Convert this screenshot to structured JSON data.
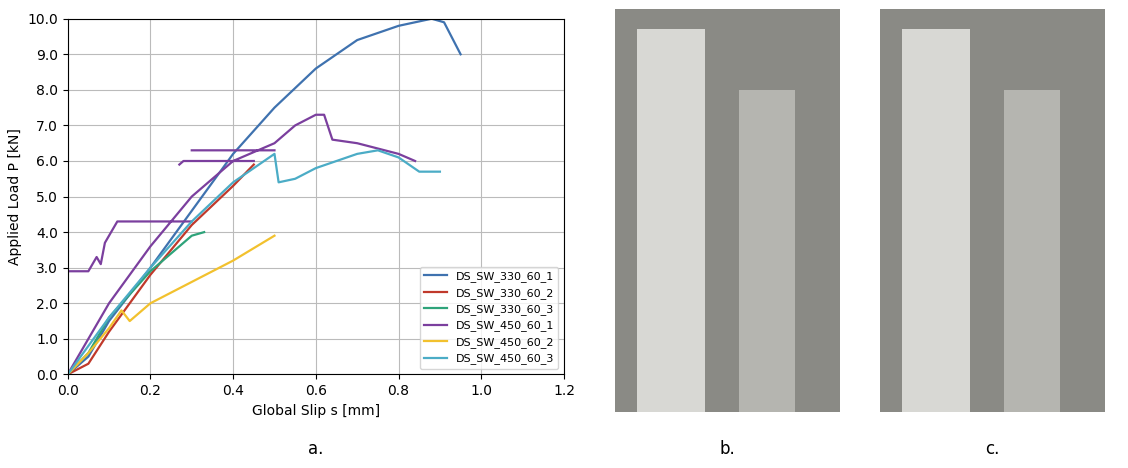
{
  "panel_labels": [
    "a.",
    "b.",
    "c."
  ],
  "chart_data": {
    "type": "line",
    "xlabel": "Global Slip s [mm]",
    "ylabel": "Applied Load P [kN]",
    "xlim": [
      0,
      1.2
    ],
    "ylim": [
      0,
      10
    ],
    "xticks": [
      {
        "value": 0,
        "label": "0.0"
      },
      0.2,
      0.4,
      0.6,
      0.8,
      {
        "value": 1,
        "label": "1.0"
      },
      1.2
    ],
    "yticks": [
      {
        "value": 0,
        "label": "0.0"
      },
      {
        "value": 1,
        "label": "1.0"
      },
      {
        "value": 2,
        "label": "2.0"
      },
      {
        "value": 3,
        "label": "3.0"
      },
      {
        "value": 4,
        "label": "4.0"
      },
      {
        "value": 5,
        "label": "5.0"
      },
      {
        "value": 6,
        "label": "6.0"
      },
      {
        "value": 7,
        "label": "7.0"
      },
      {
        "value": 8,
        "label": "8.0"
      },
      {
        "value": 9,
        "label": "9.0"
      },
      {
        "value": 10,
        "label": "10.0"
      }
    ],
    "grid": true,
    "legend": "lower right",
    "series": [
      {
        "name": "DS_SW_330_60_1",
        "color": "#3f72af",
        "x": [
          0,
          0.05,
          0.1,
          0.2,
          0.3,
          0.4,
          0.5,
          0.6,
          0.7,
          0.8,
          0.88,
          0.91,
          0.95
        ],
        "values": [
          0,
          0.5,
          1.5,
          3.0,
          4.6,
          6.2,
          7.5,
          8.6,
          9.4,
          9.8,
          10.0,
          9.9,
          9.0
        ]
      },
      {
        "name": "DS_SW_330_60_2",
        "color": "#c0392b",
        "x": [
          0,
          0.05,
          0.1,
          0.2,
          0.3,
          0.4,
          0.45
        ],
        "values": [
          0,
          0.3,
          1.2,
          2.8,
          4.2,
          5.3,
          5.9
        ]
      },
      {
        "name": "DS_SW_330_60_3",
        "color": "#2ea37a",
        "x": [
          0,
          0.05,
          0.1,
          0.2,
          0.25,
          0.3,
          0.33
        ],
        "values": [
          0,
          0.6,
          1.6,
          2.9,
          3.4,
          3.9,
          4.0
        ]
      },
      {
        "name": "DS_SW_450_60_1",
        "color": "#7b3f9e",
        "x": [
          0,
          0.1,
          0.2,
          0.3,
          0.4,
          0.5,
          0.55,
          0.6,
          0.62,
          0.64,
          0.7,
          0.8,
          0.84,
          null,
          0,
          0.05,
          0.07,
          0.08,
          0.09,
          0.1,
          0.12,
          0.3,
          null,
          0.27,
          0.28,
          0.45,
          null,
          0.3,
          0.5
        ],
        "values": [
          0,
          2.0,
          3.6,
          5.0,
          6.0,
          6.5,
          7.0,
          7.3,
          7.3,
          6.6,
          6.5,
          6.2,
          6.0,
          null,
          2.9,
          2.9,
          3.3,
          3.1,
          3.7,
          3.9,
          4.3,
          4.3,
          null,
          5.9,
          6.0,
          6.0,
          null,
          6.3,
          6.3
        ]
      },
      {
        "name": "DS_SW_450_60_2",
        "color": "#f2c12e",
        "x": [
          0,
          0.05,
          0.1,
          0.13,
          0.15,
          0.17,
          0.2,
          0.3,
          0.4,
          0.5
        ],
        "values": [
          0,
          0.6,
          1.3,
          1.8,
          1.5,
          1.7,
          2.0,
          2.6,
          3.2,
          3.9
        ]
      },
      {
        "name": "DS_SW_450_60_3",
        "color": "#4bacc6",
        "x": [
          0,
          0.05,
          0.1,
          0.2,
          0.3,
          0.4,
          0.5,
          0.51,
          0.55,
          0.6,
          0.7,
          0.75,
          0.8,
          0.85,
          0.9
        ],
        "values": [
          0,
          0.8,
          1.6,
          3.0,
          4.3,
          5.4,
          6.2,
          5.4,
          5.5,
          5.8,
          6.2,
          6.3,
          6.1,
          5.7,
          5.7
        ]
      }
    ]
  }
}
